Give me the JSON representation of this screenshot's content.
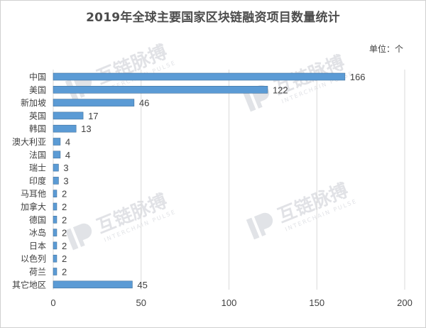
{
  "header": {
    "title": "2019年全球主要国家区块链融资项目数量统计",
    "unit": "单位：个"
  },
  "watermark": {
    "brand": "互链脉搏",
    "sub": "INTERCHAIN PULSE"
  },
  "colors": {
    "bar": "#5b9bd5",
    "bar_edge": "#41719c",
    "grid": "#d9d9d9",
    "text": "#404040"
  },
  "chart_data": {
    "type": "bar",
    "orientation": "horizontal",
    "title": "2019年全球主要国家区块链融资项目数量统计",
    "xlabel": "",
    "ylabel": "",
    "categories": [
      "中国",
      "美国",
      "新加坡",
      "英国",
      "韩国",
      "澳大利亚",
      "法国",
      "瑞士",
      "印度",
      "马耳他",
      "加拿大",
      "德国",
      "冰岛",
      "日本",
      "以色列",
      "荷兰",
      "其它地区"
    ],
    "values": [
      166,
      122,
      46,
      17,
      13,
      4,
      4,
      3,
      3,
      2,
      2,
      2,
      2,
      2,
      2,
      2,
      45
    ],
    "xlim": [
      0,
      200
    ],
    "xticks": [
      0,
      50,
      100,
      150,
      200
    ],
    "grid": true,
    "data_labels": true
  }
}
